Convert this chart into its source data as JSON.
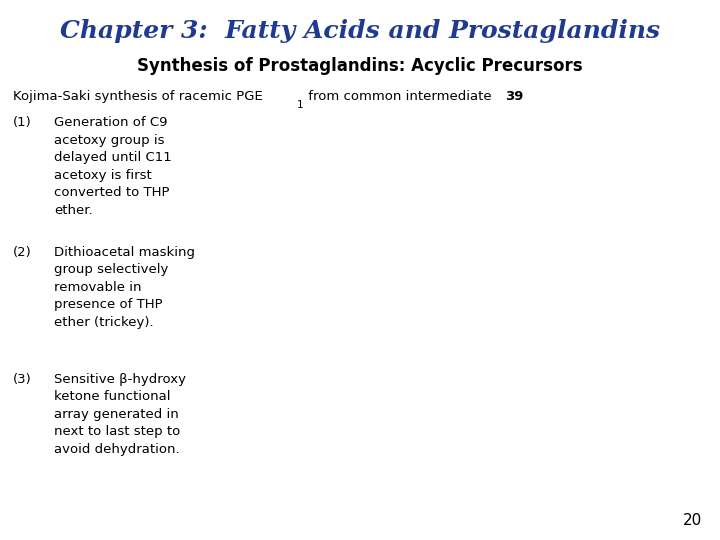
{
  "title": "Chapter 3:  Fatty Acids and Prostaglandins",
  "subtitle": "Synthesis of Prostaglandins: Acyclic Precursors",
  "title_color": "#1F3A8F",
  "subtitle_color": "#000000",
  "bg_color": "#FFFFFF",
  "page_number": "20",
  "points": [
    {
      "num": "(1)",
      "text": "Generation of C9\nacetoxy group is\ndelayed until C11\nacetoxy is first\nconverted to THP\nether."
    },
    {
      "num": "(2)",
      "text": "Dithioacetal masking\ngroup selectively\nremovable in\npresence of THP\nether (trickey)."
    },
    {
      "num": "(3)",
      "text": "Sensitive β-hydroxy\nketone functional\narray generated in\nnext to last step to\navoid dehydration."
    }
  ],
  "title_fontsize": 18,
  "subtitle_fontsize": 12,
  "intro_fontsize": 9.5,
  "body_fontsize": 9.5,
  "num_fontsize": 9.5,
  "page_fontsize": 11
}
